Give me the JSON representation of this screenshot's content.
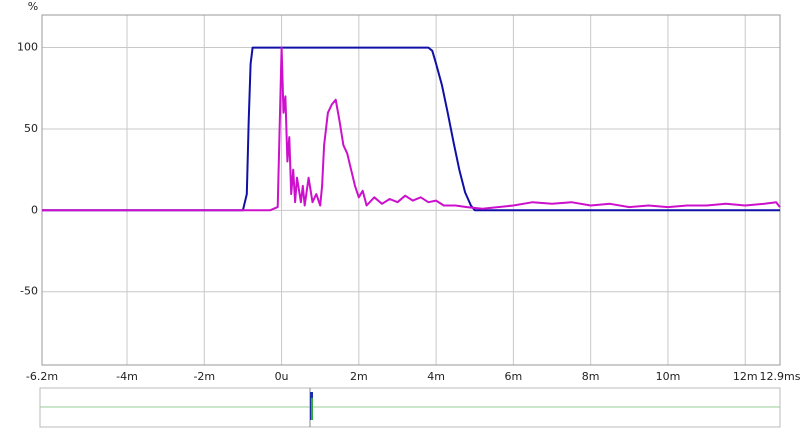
{
  "chart_data": {
    "type": "line",
    "ylabel": "%",
    "xlim": [
      -6.2,
      12.9
    ],
    "ylim": [
      -95,
      120
    ],
    "xticks": [
      {
        "value": -6.2,
        "label": "-6.2m"
      },
      {
        "value": -4,
        "label": "-4m"
      },
      {
        "value": -2,
        "label": "-2m"
      },
      {
        "value": 0,
        "label": "0u"
      },
      {
        "value": 2,
        "label": "2m"
      },
      {
        "value": 4,
        "label": "4m"
      },
      {
        "value": 6,
        "label": "6m"
      },
      {
        "value": 8,
        "label": "8m"
      },
      {
        "value": 10,
        "label": "10m"
      },
      {
        "value": 12,
        "label": "12m"
      },
      {
        "value": 12.9,
        "label": "12.9ms"
      }
    ],
    "yticks": [
      100,
      50,
      0,
      -50
    ],
    "grid": true,
    "series": [
      {
        "color": "#1010a8",
        "x": [
          -6.2,
          -1.0,
          -0.9,
          -0.85,
          -0.8,
          -0.75,
          3.8,
          3.9,
          4.0,
          4.15,
          4.3,
          4.45,
          4.6,
          4.75,
          4.9,
          5.0,
          12.9
        ],
        "values": [
          0,
          0,
          10,
          55,
          90,
          100,
          100,
          98,
          90,
          77,
          60,
          42,
          25,
          11,
          3,
          0,
          0
        ]
      },
      {
        "color": "#cc10cc",
        "x": [
          -6.2,
          -0.3,
          -0.1,
          0,
          0.05,
          0.1,
          0.15,
          0.2,
          0.25,
          0.3,
          0.35,
          0.4,
          0.5,
          0.55,
          0.6,
          0.7,
          0.8,
          0.9,
          1.0,
          1.05,
          1.1,
          1.2,
          1.3,
          1.4,
          1.5,
          1.6,
          1.7,
          1.8,
          1.9,
          2.0,
          2.1,
          2.2,
          2.4,
          2.6,
          2.8,
          3.0,
          3.2,
          3.4,
          3.6,
          3.8,
          4.0,
          4.2,
          4.5,
          4.8,
          5.2,
          5.6,
          6.0,
          6.5,
          7.0,
          7.5,
          8.0,
          8.5,
          9.0,
          9.5,
          10.0,
          10.5,
          11.0,
          11.5,
          12.0,
          12.5,
          12.8,
          12.9
        ],
        "values": [
          0,
          0,
          2,
          100,
          60,
          70,
          30,
          45,
          10,
          25,
          5,
          20,
          5,
          15,
          3,
          20,
          5,
          10,
          3,
          15,
          40,
          60,
          65,
          68,
          55,
          40,
          35,
          25,
          15,
          8,
          12,
          3,
          8,
          4,
          7,
          5,
          9,
          6,
          8,
          5,
          6,
          3,
          3,
          2,
          1,
          2,
          3,
          5,
          4,
          5,
          3,
          4,
          2,
          3,
          2,
          3,
          3,
          4,
          3,
          4,
          5,
          2
        ]
      }
    ]
  }
}
